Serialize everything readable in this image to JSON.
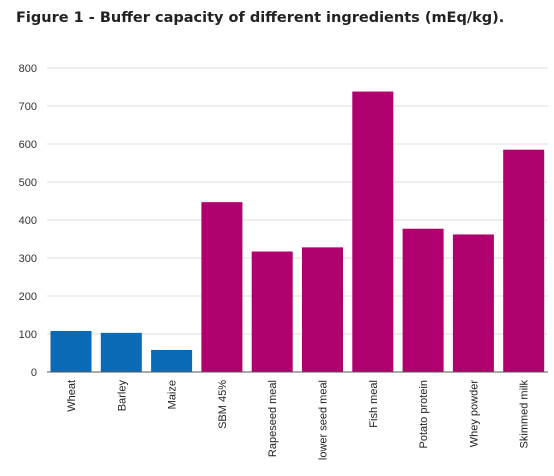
{
  "title": "Figure 1 - Buffer capacity of different ingredients (mEq/kg).",
  "colors": {
    "grain": "#0a6ab5",
    "other": "#b0006e",
    "grid": "#dcdcdc",
    "axis": "#555555"
  },
  "chart_data": {
    "type": "bar",
    "title": "Figure 1 - Buffer capacity of different ingredients (mEq/kg).",
    "xlabel": "",
    "ylabel": "",
    "ylim": [
      0,
      800
    ],
    "yticks": [
      0,
      100,
      200,
      300,
      400,
      500,
      600,
      700,
      800
    ],
    "grid": true,
    "categories": [
      "Wheat",
      "Barley",
      "Maize",
      "SBM 45%",
      "Rapeseed meal",
      "lower seed meal",
      "Fish meal",
      "Potato protein",
      "Whey powder",
      "Skimmed milk"
    ],
    "values": [
      108,
      103,
      58,
      447,
      317,
      328,
      738,
      377,
      362,
      585
    ],
    "bar_colors": [
      "#0a6ab5",
      "#0a6ab5",
      "#0a6ab5",
      "#b0006e",
      "#b0006e",
      "#b0006e",
      "#b0006e",
      "#b0006e",
      "#b0006e",
      "#b0006e"
    ]
  }
}
